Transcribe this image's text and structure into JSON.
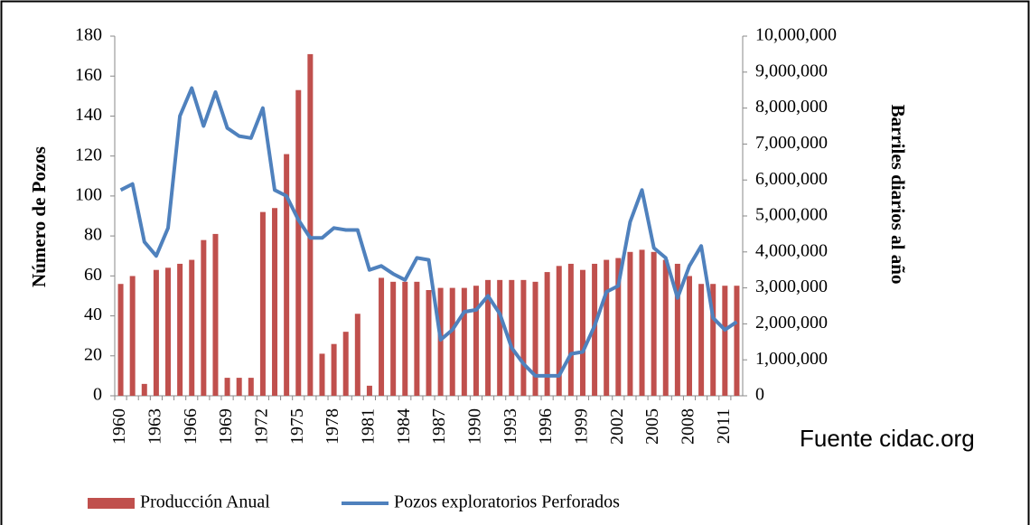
{
  "chart_data": {
    "type": "bar-line",
    "xlabel_left": "Número de Pozos",
    "ylabel": "Número de Pozos",
    "y2label": "Barriles diarios al año",
    "annotation": "Fuente cidac.org",
    "categories": [
      "1960",
      null,
      null,
      "1963",
      null,
      null,
      "1966",
      null,
      null,
      "1969",
      null,
      null,
      "1972",
      null,
      null,
      "1975",
      null,
      null,
      "1978",
      null,
      null,
      "1981",
      null,
      null,
      "1984",
      null,
      null,
      "1987",
      null,
      null,
      "1990",
      null,
      null,
      "1993",
      null,
      null,
      "1996",
      null,
      null,
      "1999",
      null,
      null,
      "2002",
      null,
      null,
      "2005",
      null,
      null,
      "2008",
      null,
      null,
      "2011",
      null
    ],
    "series": [
      {
        "name": "Producción Anual",
        "kind": "bar",
        "axis": "y2",
        "color": "#c0504d",
        "values": [
          3110000,
          3330000,
          330000,
          3500000,
          3560000,
          3670000,
          3780000,
          4330000,
          4500000,
          500000,
          500000,
          500000,
          5110000,
          5220000,
          6720000,
          8500000,
          9500000,
          1170000,
          1440000,
          1780000,
          2280000,
          280000,
          3280000,
          3170000,
          3170000,
          3170000,
          2940000,
          3000000,
          3000000,
          3000000,
          3060000,
          3220000,
          3220000,
          3220000,
          3220000,
          3170000,
          3440000,
          3610000,
          3670000,
          3500000,
          3670000,
          3780000,
          3830000,
          4000000,
          4060000,
          4000000,
          3780000,
          3670000,
          3330000,
          3110000,
          3110000,
          3060000,
          3060000
        ]
      },
      {
        "name": "Pozos exploratorios Perforados",
        "kind": "line",
        "color": "#4f81bd",
        "values": [
          103,
          106,
          77,
          70,
          84,
          140,
          154,
          135,
          152,
          134,
          130,
          129,
          144,
          103,
          100,
          88,
          79,
          79,
          84,
          83,
          83,
          63,
          65,
          61,
          58,
          69,
          68,
          28,
          33,
          42,
          43,
          50,
          41,
          24,
          16,
          10,
          10,
          10,
          21,
          22,
          35,
          52,
          55,
          87,
          103,
          74,
          69,
          49,
          65,
          75,
          39,
          33,
          37
        ]
      }
    ],
    "ylim": [
      0,
      180
    ],
    "yticks": [
      0,
      20,
      40,
      60,
      80,
      100,
      120,
      140,
      160,
      180
    ],
    "y2lim": [
      0,
      10000000
    ],
    "y2ticks": [
      0,
      {
        "value": 1000000,
        "label": "1,000,000"
      },
      {
        "value": 2000000,
        "label": "2,000,000"
      },
      {
        "value": 3000000,
        "label": "3,000,000"
      },
      {
        "value": 4000000,
        "label": "4,000,000"
      },
      {
        "value": 5000000,
        "label": "5,000,000"
      },
      {
        "value": 6000000,
        "label": "6,000,000"
      },
      {
        "value": 7000000,
        "label": "7,000,000"
      },
      {
        "value": 8000000,
        "label": "8,000,000"
      },
      {
        "value": 9000000,
        "label": "9,000,000"
      },
      {
        "value": 10000000,
        "label": "10,000,000"
      }
    ],
    "grid": false,
    "legend": "bottom"
  }
}
